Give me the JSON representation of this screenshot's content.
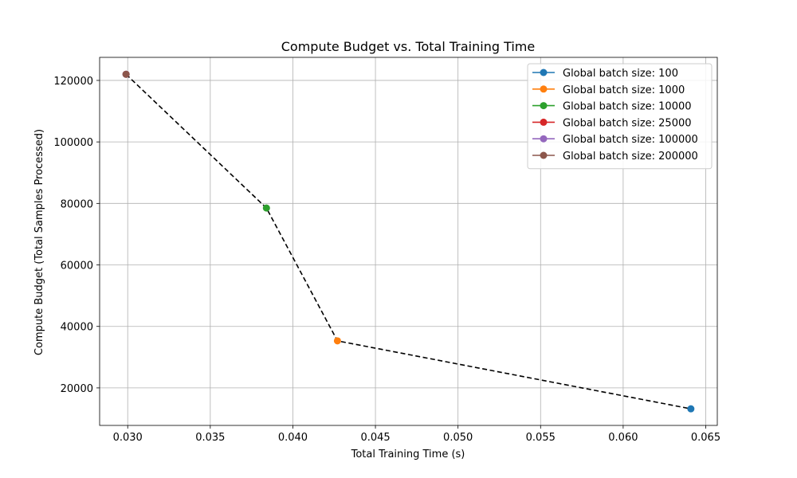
{
  "chart_data": {
    "type": "line",
    "title": "Compute Budget vs. Total Training Time",
    "xlabel": "Total Training Time (s)",
    "ylabel": "Compute Budget (Total Samples Processed)",
    "xlim": [
      0.0283,
      0.0657
    ],
    "ylim": [
      7800,
      127500
    ],
    "x_ticks": [
      0.03,
      0.035,
      0.04,
      0.045,
      0.05,
      0.055,
      0.06,
      0.065
    ],
    "x_tick_labels": [
      "0.030",
      "0.035",
      "0.040",
      "0.045",
      "0.050",
      "0.055",
      "0.060",
      "0.065"
    ],
    "y_ticks": [
      20000,
      40000,
      60000,
      80000,
      100000,
      120000
    ],
    "y_tick_labels": [
      "20000",
      "40000",
      "60000",
      "80000",
      "100000",
      "120000"
    ],
    "grid": true,
    "legend_position": "top-right",
    "series": [
      {
        "name": "Global batch size: 100",
        "color": "#1f77b4",
        "x": [
          0.0641
        ],
        "y": [
          13200
        ]
      },
      {
        "name": "Global batch size: 1000",
        "color": "#ff7f0e",
        "x": [
          0.0427
        ],
        "y": [
          35300
        ]
      },
      {
        "name": "Global batch size: 10000",
        "color": "#2ca02c",
        "x": [
          0.0384
        ],
        "y": [
          78500
        ]
      },
      {
        "name": "Global batch size: 25000",
        "color": "#d62728",
        "x": [
          0.0299
        ],
        "y": [
          122000
        ]
      },
      {
        "name": "Global batch size: 100000",
        "color": "#9467bd",
        "x": [
          0.0299
        ],
        "y": [
          122000
        ]
      },
      {
        "name": "Global batch size: 200000",
        "color": "#8c564b",
        "x": [
          0.0299
        ],
        "y": [
          122000
        ]
      }
    ],
    "connector": {
      "style": "dashed",
      "color": "#000000",
      "x": [
        0.0299,
        0.0384,
        0.0427,
        0.0641
      ],
      "y": [
        122000,
        78500,
        35300,
        13200
      ]
    }
  }
}
